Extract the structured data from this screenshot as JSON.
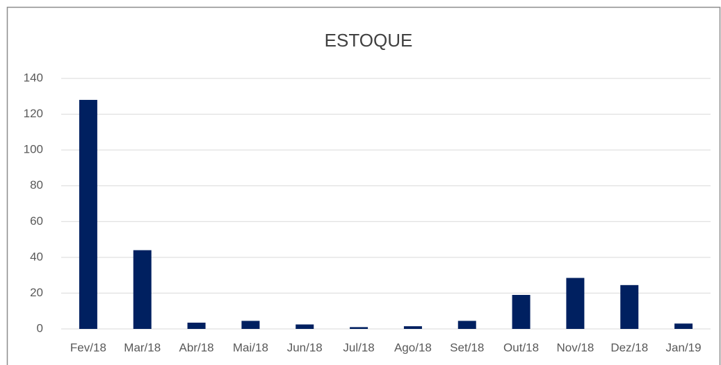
{
  "chart_data": {
    "type": "bar",
    "title": "ESTOQUE",
    "categories": [
      "Fev/18",
      "Mar/18",
      "Abr/18",
      "Mai/18",
      "Jun/18",
      "Jul/18",
      "Ago/18",
      "Set/18",
      "Out/18",
      "Nov/18",
      "Dez/18",
      "Jan/19"
    ],
    "values": [
      128,
      44,
      3.5,
      4.5,
      2.5,
      1,
      1.5,
      4.5,
      19,
      28.5,
      24.5,
      3
    ],
    "color": "#002060",
    "ylim": [
      0,
      140
    ],
    "yticks": [
      0,
      20,
      40,
      60,
      80,
      100,
      120,
      140
    ],
    "grid": true
  }
}
